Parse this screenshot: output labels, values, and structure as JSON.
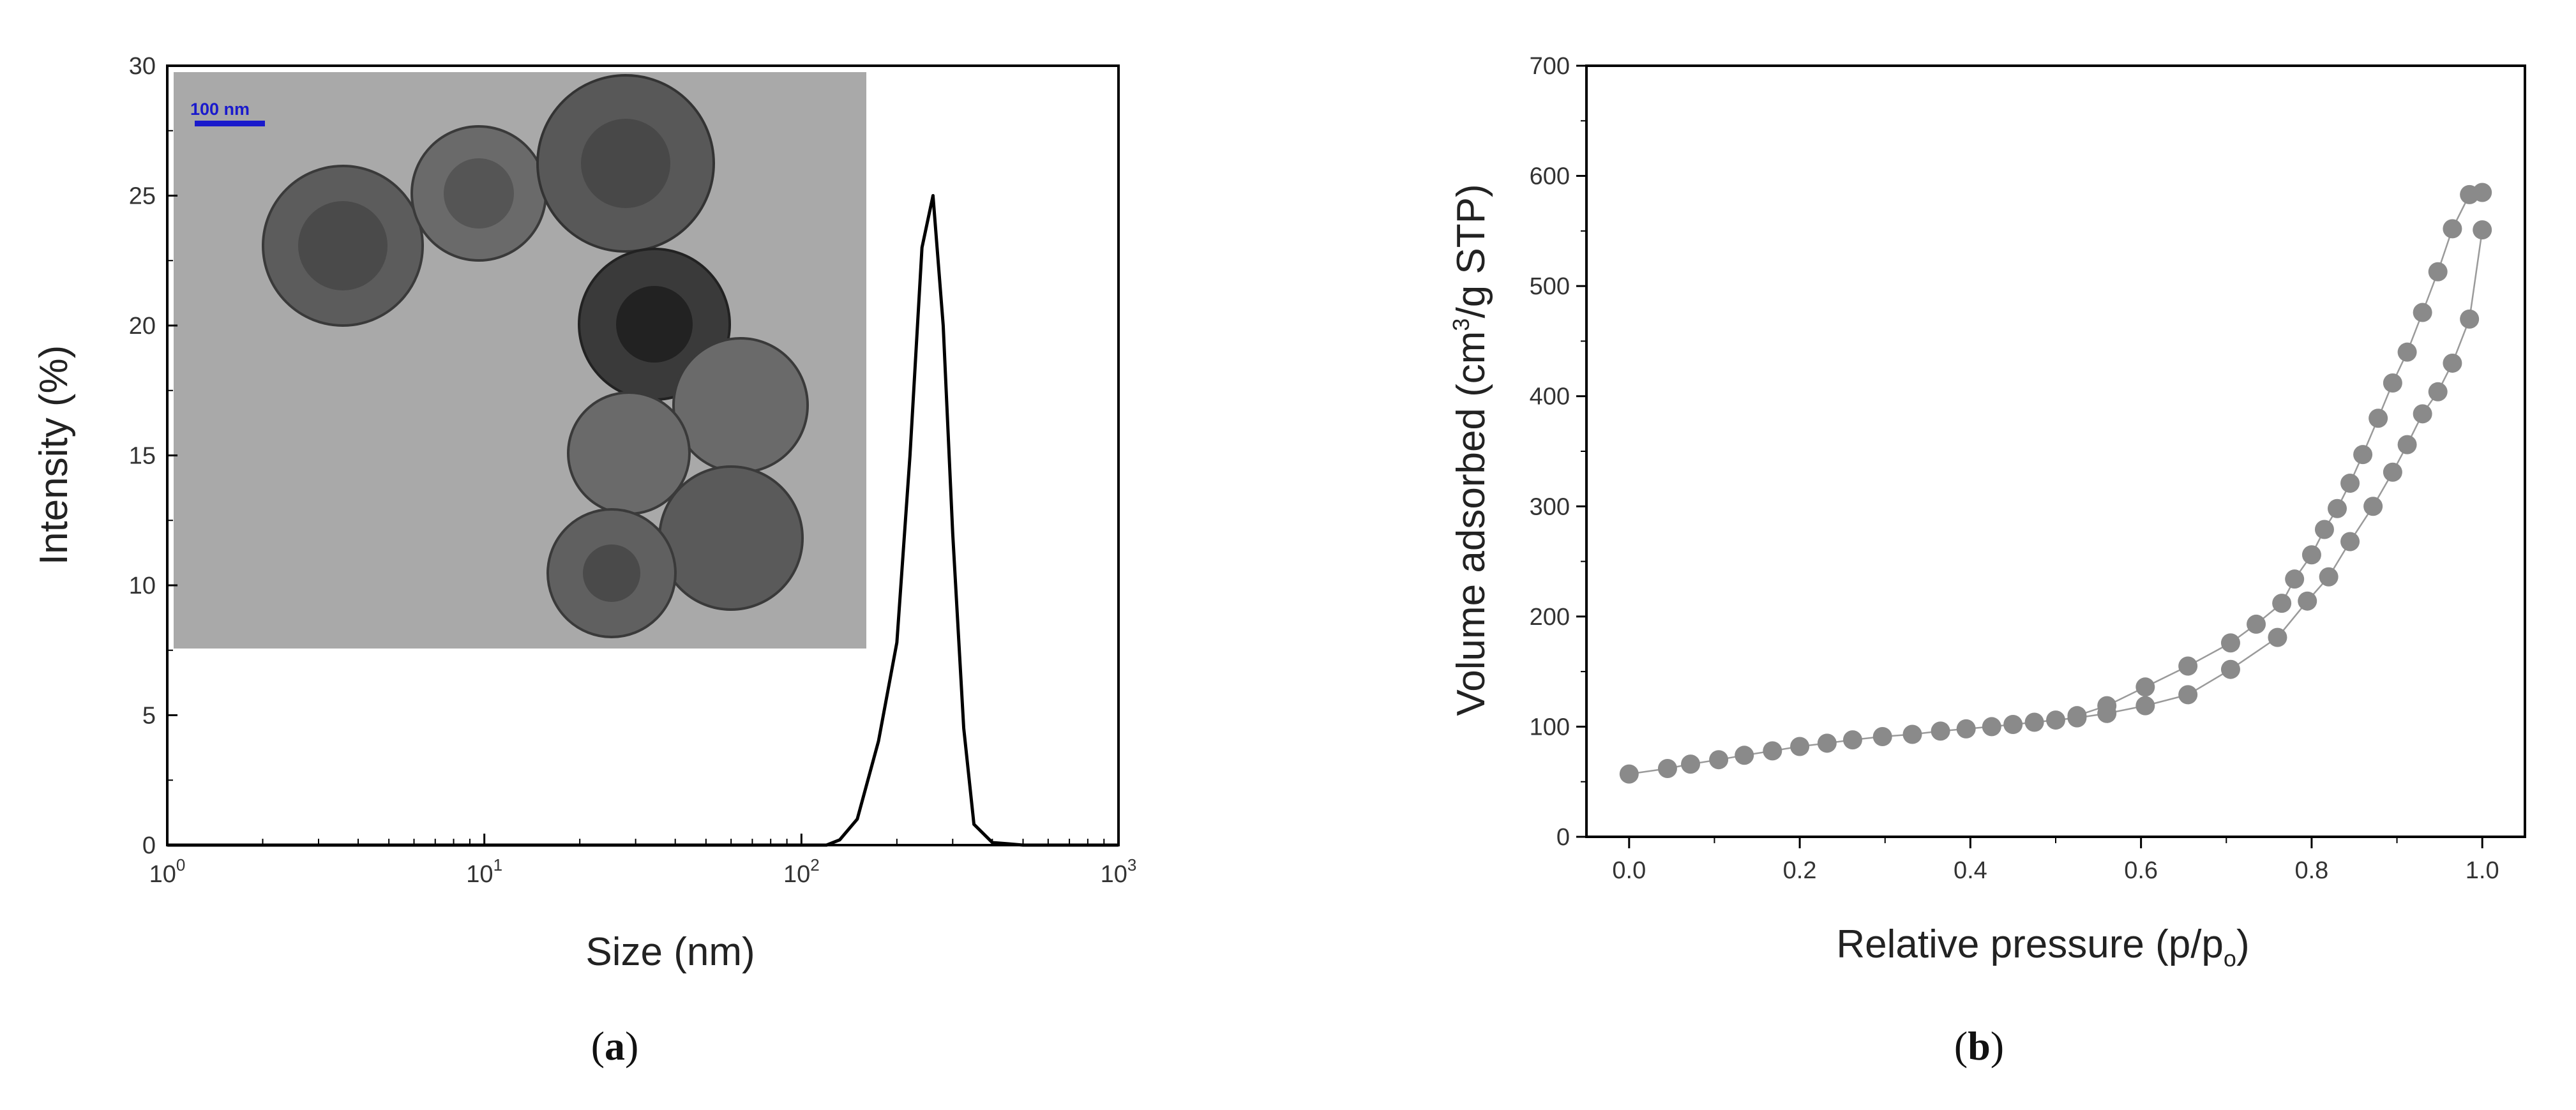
{
  "colors": {
    "axis": "#000000",
    "line_a": "#000000",
    "marker_b": "#8a8a8a",
    "line_b": "#9a9a9a",
    "tem_background": "#a8a8a8",
    "tem_particle": "#555555",
    "scale_bar": "#1a1acc"
  },
  "panels": {
    "a": {
      "paren_open": "(",
      "letter": "a",
      "paren_close": ")"
    },
    "b": {
      "paren_open": "(",
      "letter": "b",
      "paren_close": ")"
    }
  },
  "inset": {
    "description_icon": "tem-micrograph-image",
    "scale_bar_label": "100 nm"
  },
  "chart_data": [
    {
      "type": "line",
      "xscale": "log",
      "xlabel": "Size (nm)",
      "ylabel": "Intensity (%)",
      "xlim": [
        1,
        1000
      ],
      "ylim": [
        0,
        30
      ],
      "x_ticks": [
        {
          "base": "10",
          "exp": "0",
          "value": 1
        },
        {
          "base": "10",
          "exp": "1",
          "value": 10
        },
        {
          "base": "10",
          "exp": "2",
          "value": 100
        },
        {
          "base": "10",
          "exp": "3",
          "value": 1000
        }
      ],
      "y_ticks": [
        "0",
        "5",
        "10",
        "15",
        "20",
        "25",
        "30"
      ],
      "grid": false,
      "series": [
        {
          "x": [
            120,
            132,
            150,
            175,
            200,
            220,
            240,
            260,
            280,
            300,
            325,
            350,
            400,
            450,
            500
          ],
          "y": [
            0,
            0.2,
            1.0,
            4.0,
            7.8,
            15.0,
            23.0,
            25.0,
            20.0,
            12.0,
            4.5,
            0.8,
            0.1,
            0.05,
            0
          ]
        }
      ]
    },
    {
      "type": "scatter",
      "xlabel_main": "Relative pressure (p/p",
      "xlabel_sub": "o",
      "xlabel_end": ")",
      "ylabel_main": "Volume adsorbed (cm",
      "ylabel_sup": "3",
      "ylabel_end": "/g  STP)",
      "xlim": [
        -0.05,
        1.05
      ],
      "ylim": [
        0,
        700
      ],
      "x_ticks": [
        "0.0",
        "0.2",
        "0.4",
        "0.6",
        "0.8",
        "1.0"
      ],
      "x_tick_values": [
        0,
        0.2,
        0.4,
        0.6,
        0.8,
        1.0
      ],
      "y_ticks": [
        "0",
        "100",
        "200",
        "300",
        "400",
        "500",
        "600",
        "700"
      ],
      "grid": false,
      "series": [
        {
          "x": [
            0.0,
            0.045,
            0.072,
            0.105,
            0.135,
            0.168,
            0.2,
            0.232,
            0.262,
            0.297,
            0.332,
            0.365,
            0.395,
            0.425,
            0.45,
            0.475,
            0.5,
            0.525,
            0.56,
            0.605,
            0.655,
            0.705,
            0.76,
            0.795,
            0.82,
            0.845,
            0.872,
            0.895,
            0.912,
            0.93,
            0.948,
            0.965,
            0.985,
            1.0
          ],
          "y": [
            57,
            62,
            66,
            70,
            74,
            78,
            82,
            85,
            88,
            91,
            93,
            96,
            98,
            100,
            102,
            104,
            106,
            108,
            112,
            119,
            129,
            152,
            181,
            214,
            236,
            268,
            300,
            331,
            356,
            384,
            404,
            430,
            470,
            551
          ]
        },
        {
          "x": [
            0.525,
            0.56,
            0.605,
            0.655,
            0.705,
            0.735,
            0.765,
            0.78,
            0.8,
            0.815,
            0.83,
            0.845,
            0.86,
            0.878,
            0.895,
            0.912,
            0.93,
            0.948,
            0.965,
            0.985,
            1.0
          ],
          "y": [
            110,
            119,
            136,
            155,
            176,
            193,
            212,
            234,
            256,
            279,
            298,
            321,
            347,
            380,
            412,
            440,
            476,
            513,
            552,
            583,
            585
          ]
        }
      ]
    }
  ]
}
